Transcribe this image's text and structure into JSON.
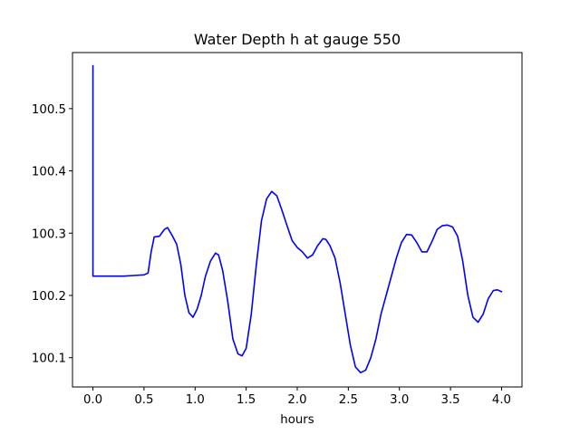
{
  "chart_data": {
    "type": "line",
    "title": "Water Depth h at gauge 550",
    "xlabel": "hours",
    "ylabel": "",
    "xlim": [
      -0.2,
      4.2
    ],
    "ylim": [
      100.053,
      100.59
    ],
    "xticks": [
      0.0,
      0.5,
      1.0,
      1.5,
      2.0,
      2.5,
      3.0,
      3.5,
      4.0
    ],
    "xtick_labels": [
      "0.0",
      "0.5",
      "1.0",
      "1.5",
      "2.0",
      "2.5",
      "3.0",
      "3.5",
      "4.0"
    ],
    "yticks": [
      100.1,
      100.2,
      100.3,
      100.4,
      100.5
    ],
    "ytick_labels": [
      "100.1",
      "100.2",
      "100.3",
      "100.4",
      "100.5"
    ],
    "grid": false,
    "series": [
      {
        "color": "#0000ff",
        "x": [
          0.0,
          0.0,
          0.0,
          0.05,
          0.1,
          0.2,
          0.3,
          0.4,
          0.5,
          0.54,
          0.57,
          0.6,
          0.65,
          0.7,
          0.73,
          0.78,
          0.82,
          0.86,
          0.9,
          0.94,
          0.98,
          1.02,
          1.06,
          1.1,
          1.15,
          1.2,
          1.23,
          1.27,
          1.32,
          1.37,
          1.42,
          1.46,
          1.5,
          1.55,
          1.6,
          1.65,
          1.7,
          1.75,
          1.8,
          1.85,
          1.9,
          1.95,
          2.0,
          2.05,
          2.1,
          2.15,
          2.2,
          2.25,
          2.28,
          2.32,
          2.37,
          2.42,
          2.47,
          2.52,
          2.57,
          2.62,
          2.67,
          2.72,
          2.77,
          2.82,
          2.87,
          2.92,
          2.97,
          3.02,
          3.07,
          3.12,
          3.17,
          3.22,
          3.27,
          3.32,
          3.37,
          3.42,
          3.47,
          3.52,
          3.57,
          3.62,
          3.67,
          3.72,
          3.77,
          3.82,
          3.87,
          3.92,
          3.96,
          4.0
        ],
        "y": [
          100.569,
          100.231,
          100.231,
          100.231,
          100.231,
          100.231,
          100.231,
          100.232,
          100.233,
          100.236,
          100.27,
          100.294,
          100.295,
          100.306,
          100.309,
          100.295,
          100.282,
          100.25,
          100.2,
          100.172,
          100.165,
          100.178,
          100.2,
          100.23,
          100.255,
          100.268,
          100.265,
          100.24,
          100.19,
          100.13,
          100.106,
          100.103,
          100.115,
          100.17,
          100.25,
          100.32,
          100.355,
          100.367,
          100.36,
          100.337,
          100.312,
          100.288,
          100.277,
          100.27,
          100.26,
          100.265,
          100.28,
          100.291,
          100.29,
          100.28,
          100.26,
          100.22,
          100.17,
          100.12,
          100.085,
          100.076,
          100.08,
          100.1,
          100.13,
          100.17,
          100.2,
          100.23,
          100.26,
          100.285,
          100.298,
          100.297,
          100.285,
          100.27,
          100.27,
          100.287,
          100.306,
          100.312,
          100.313,
          100.31,
          100.295,
          100.255,
          100.2,
          100.165,
          100.157,
          100.17,
          100.195,
          100.208,
          100.209,
          100.206
        ]
      }
    ]
  }
}
